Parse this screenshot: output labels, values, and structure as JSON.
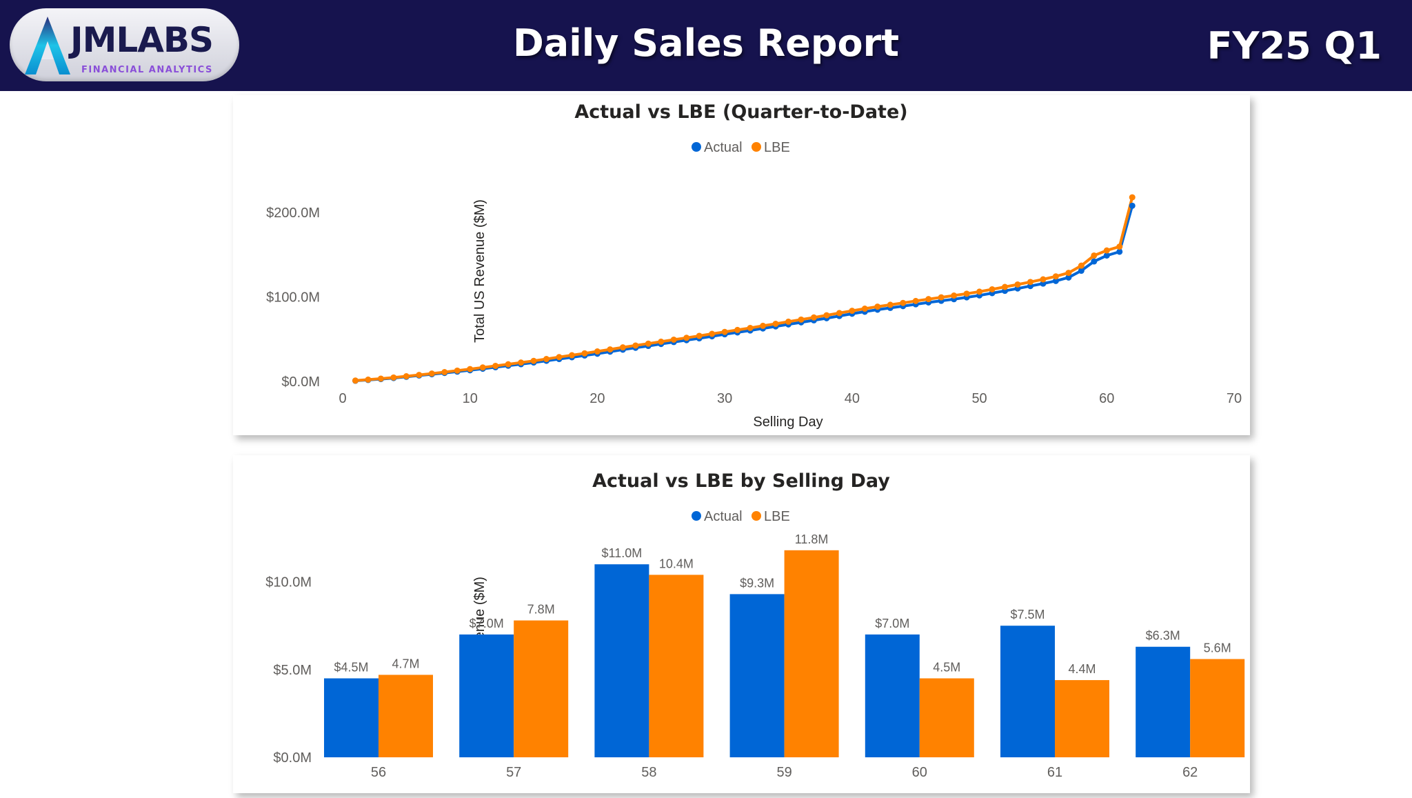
{
  "header": {
    "logo_name": "JMLABS",
    "logo_subtitle": "FINANCIAL ANALYTICS",
    "title": "Daily Sales Report",
    "period": "FY25 Q1"
  },
  "colors": {
    "header_bg": "#16134e",
    "actual": "#0066d6",
    "lbe": "#ff8200",
    "logo_accent": "#8a4fd8"
  },
  "chart_data": [
    {
      "type": "line",
      "title": "Actual vs LBE (Quarter-to-Date)",
      "legend": [
        "Actual",
        "LBE"
      ],
      "legend_position": "top-center",
      "xlabel": "Selling Day",
      "ylabel": "Total US Revenue ($M)",
      "xlim": [
        0,
        70
      ],
      "ylim": [
        0,
        200
      ],
      "x_ticks": [
        "0",
        "10",
        "20",
        "30",
        "40",
        "50",
        "60",
        "70"
      ],
      "y_ticks": [
        "$0.0M",
        "$100.0M",
        "$200.0M"
      ],
      "y_tick_values": [
        0,
        100,
        200
      ],
      "grid": false,
      "x": [
        1,
        2,
        3,
        4,
        5,
        6,
        7,
        8,
        9,
        10,
        11,
        12,
        13,
        14,
        15,
        16,
        17,
        18,
        19,
        20,
        21,
        22,
        23,
        24,
        25,
        26,
        27,
        28,
        29,
        30,
        31,
        32,
        33,
        34,
        35,
        36,
        37,
        38,
        39,
        40,
        41,
        42,
        43,
        44,
        45,
        46,
        47,
        48,
        49,
        50,
        51,
        52,
        53,
        54,
        55,
        56,
        57,
        58,
        59,
        60,
        61,
        62
      ],
      "series": [
        {
          "name": "Actual",
          "values": [
            0.8,
            1.7,
            2.8,
            4.0,
            5.5,
            7.0,
            8.5,
            10.0,
            11.6,
            13.2,
            15.0,
            16.8,
            18.6,
            20.4,
            22.4,
            24.4,
            26.5,
            28.6,
            30.7,
            32.8,
            35.2,
            37.6,
            39.8,
            42.0,
            44.3,
            46.6,
            48.8,
            51.0,
            53.4,
            55.8,
            58.0,
            60.3,
            62.7,
            65.1,
            67.5,
            69.9,
            72.3,
            74.8,
            77.4,
            80.1,
            82.5,
            84.9,
            87.0,
            89.1,
            91.3,
            93.5,
            95.4,
            97.3,
            99.5,
            101.8,
            104.5,
            107.2,
            110.0,
            112.9,
            115.8,
            118.9,
            123.0,
            131.0,
            142.0,
            149.0,
            153.5,
            207.9
          ]
        },
        {
          "name": "LBE",
          "values": [
            1.0,
            2.1,
            3.3,
            4.6,
            6.1,
            7.7,
            9.3,
            11.0,
            12.8,
            14.6,
            16.5,
            18.4,
            20.3,
            22.3,
            24.3,
            26.5,
            28.8,
            31.0,
            33.2,
            35.5,
            37.9,
            40.3,
            42.5,
            44.7,
            47.0,
            49.4,
            51.6,
            53.9,
            56.3,
            58.6,
            60.9,
            63.3,
            65.8,
            68.2,
            70.7,
            73.2,
            75.7,
            78.3,
            80.9,
            83.6,
            86.1,
            88.5,
            90.7,
            92.9,
            95.2,
            97.4,
            99.5,
            101.6,
            103.8,
            106.2,
            109.0,
            111.8,
            114.7,
            117.7,
            120.8,
            124.3,
            128.5,
            137.0,
            149.0,
            155.0,
            159.5,
            217.9
          ]
        }
      ]
    },
    {
      "type": "bar",
      "title": "Actual vs LBE by Selling Day",
      "legend": [
        "Actual",
        "LBE"
      ],
      "legend_position": "top-center",
      "xlabel": "",
      "ylabel": "Total US Revenue ($M)",
      "ylim": [
        0,
        12.5
      ],
      "y_ticks": [
        "$0.0M",
        "$5.0M",
        "$10.0M"
      ],
      "y_tick_values": [
        0,
        5,
        10
      ],
      "grid": false,
      "categories": [
        "56",
        "57",
        "58",
        "59",
        "60",
        "61",
        "62"
      ],
      "series": [
        {
          "name": "Actual",
          "values": [
            4.5,
            7.0,
            11.0,
            9.3,
            7.0,
            7.5,
            6.3
          ],
          "labels": [
            "$4.5M",
            "$7.0M",
            "$11.0M",
            "$9.3M",
            "$7.0M",
            "$7.5M",
            "$6.3M"
          ]
        },
        {
          "name": "LBE",
          "values": [
            4.7,
            7.8,
            10.4,
            11.8,
            4.5,
            4.4,
            5.6
          ],
          "labels": [
            "4.7M",
            "7.8M",
            "10.4M",
            "11.8M",
            "4.5M",
            "4.4M",
            "5.6M"
          ]
        }
      ]
    }
  ]
}
